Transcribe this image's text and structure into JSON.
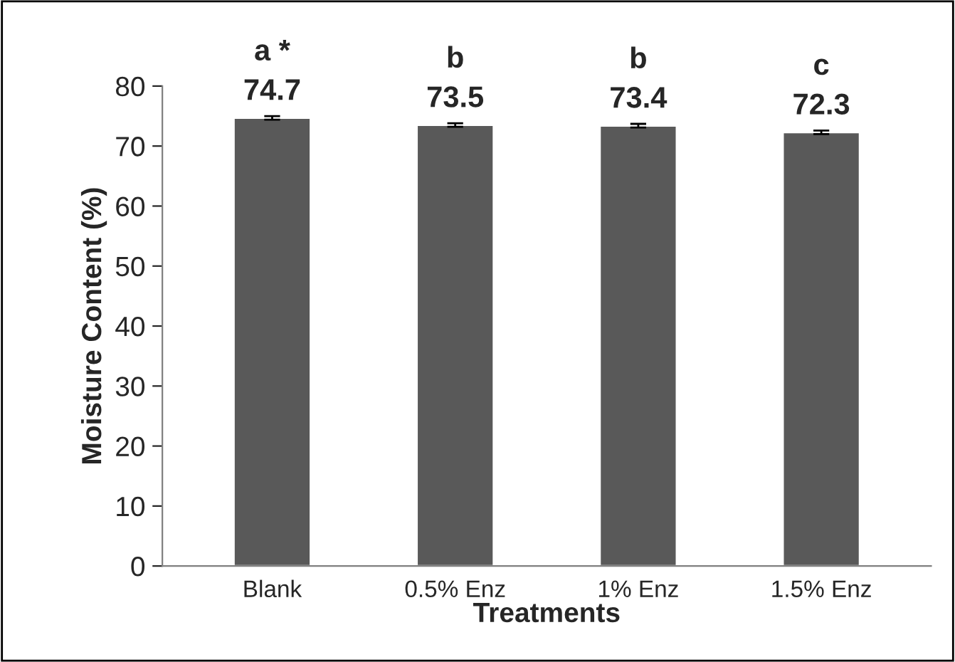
{
  "chart_data": {
    "type": "bar",
    "categories": [
      "Blank",
      "0.5% Enz",
      "1% Enz",
      "1.5% Enz"
    ],
    "values": [
      74.7,
      73.5,
      73.4,
      72.3
    ],
    "errors": [
      0.3,
      0.3,
      0.3,
      0.3
    ],
    "color": "#595959",
    "data_labels": true,
    "annotations": [
      {
        "text": "a *",
        "x": "Blank",
        "y": 74.7
      },
      {
        "text": "b",
        "x": "0.5% Enz",
        "y": 73.5
      },
      {
        "text": "b",
        "x": "1% Enz",
        "y": 73.4
      },
      {
        "text": "c",
        "x": "1.5% Enz",
        "y": 72.3
      }
    ],
    "xlabel": "Treatments",
    "ylabel": "Moisture Content (%)",
    "ylim": [
      0,
      80
    ],
    "yticks": [
      0,
      10,
      20,
      30,
      40,
      50,
      60,
      70,
      80
    ],
    "grid": false,
    "legend": false
  }
}
